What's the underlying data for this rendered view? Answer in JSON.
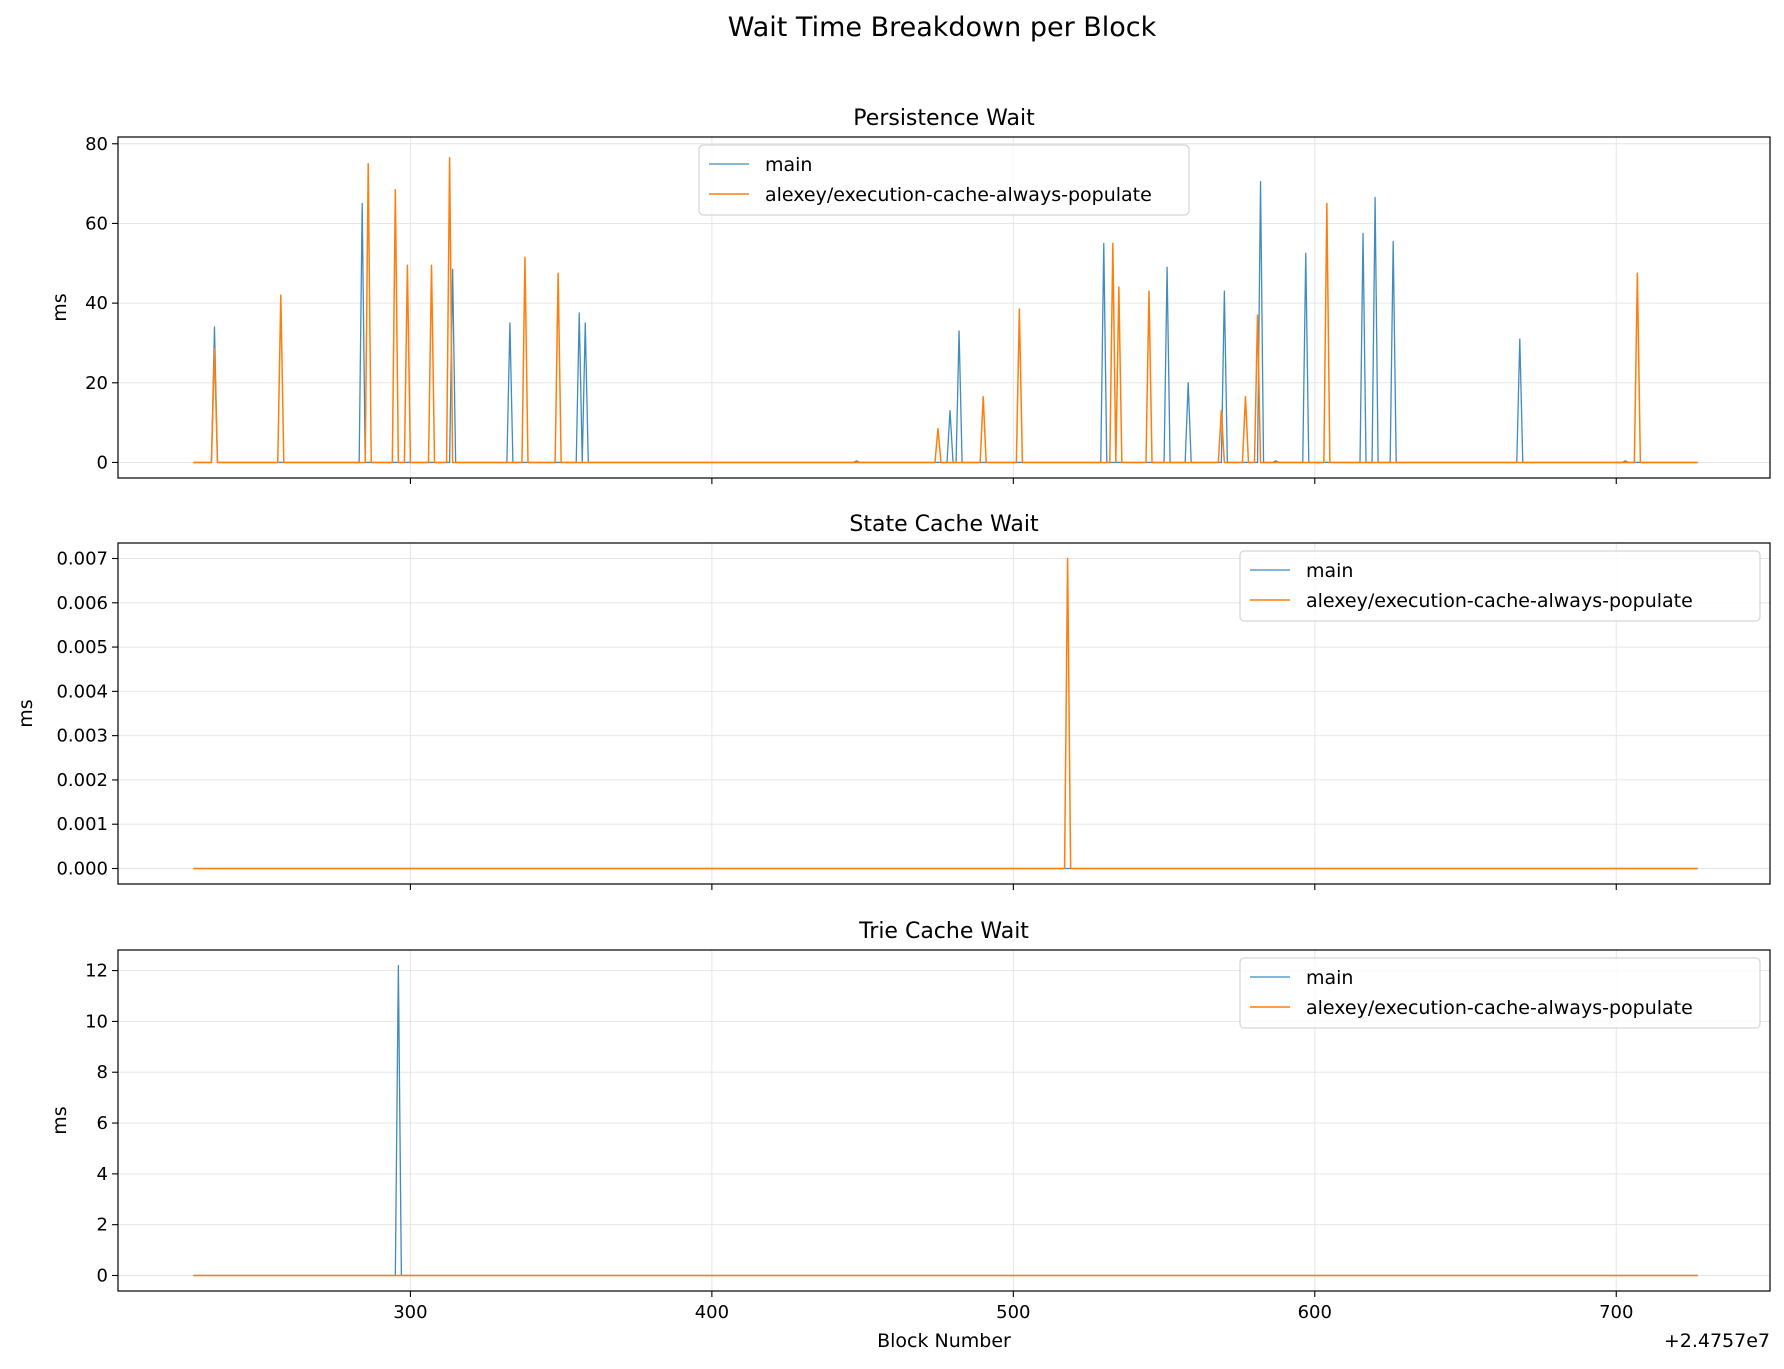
{
  "figure": {
    "title": "Wait Time Breakdown per Block"
  },
  "colors": {
    "main": "#1f77b4",
    "branch": "#ff7f0e",
    "grid": "#e6e6e6",
    "axis": "#000000"
  },
  "chart_data": [
    {
      "type": "line",
      "title": "Persistence Wait",
      "xlabel": "",
      "ylabel": "ms",
      "offset_text": "",
      "xlim": [
        24757203,
        24757751
      ],
      "ylim": [
        -3.9,
        81.7
      ],
      "xticks": [
        24757300,
        24757400,
        24757500,
        24757600,
        24757700
      ],
      "xtick_labels": [
        "",
        "",
        "",
        "",
        ""
      ],
      "yticks": [
        0,
        20,
        40,
        60,
        80
      ],
      "ytick_labels": [
        "0",
        "20",
        "40",
        "60",
        "80"
      ],
      "grid": true,
      "legend_position": "top-center",
      "x_range": [
        24757228,
        24757727
      ],
      "series": [
        {
          "name": "main",
          "color": "#1f77b4",
          "baseline": 0,
          "peaks": [
            [
              24757235,
              34
            ],
            [
              24757284,
              65
            ],
            [
              24757314,
              48.5
            ],
            [
              24757333,
              35
            ],
            [
              24757356,
              37.5
            ],
            [
              24757358,
              35
            ],
            [
              24757448,
              0.4
            ],
            [
              24757479,
              13
            ],
            [
              24757482,
              33
            ],
            [
              24757530,
              55
            ],
            [
              24757551,
              49
            ],
            [
              24757558,
              20
            ],
            [
              24757570,
              43
            ],
            [
              24757582,
              70.5
            ],
            [
              24757587,
              0.4
            ],
            [
              24757597,
              52.5
            ],
            [
              24757616,
              57.5
            ],
            [
              24757620,
              66.5
            ],
            [
              24757626,
              55.5
            ],
            [
              24757668,
              31
            ],
            [
              24757703,
              0.4
            ]
          ]
        },
        {
          "name": "alexey/execution-cache-always-populate",
          "color": "#ff7f0e",
          "baseline": 0,
          "peaks": [
            [
              24757235,
              28.5
            ],
            [
              24757257,
              42
            ],
            [
              24757286,
              75
            ],
            [
              24757295,
              68.5
            ],
            [
              24757299,
              49.5
            ],
            [
              24757307,
              49.5
            ],
            [
              24757313,
              76.5
            ],
            [
              24757338,
              51.5
            ],
            [
              24757349,
              47.5
            ],
            [
              24757475,
              8.5
            ],
            [
              24757490,
              16.5
            ],
            [
              24757502,
              38.5
            ],
            [
              24757533,
              55
            ],
            [
              24757535,
              44
            ],
            [
              24757545,
              43
            ],
            [
              24757569,
              13
            ],
            [
              24757577,
              16.5
            ],
            [
              24757581,
              37
            ],
            [
              24757604,
              65
            ],
            [
              24757707,
              47.5
            ]
          ]
        }
      ]
    },
    {
      "type": "line",
      "title": "State Cache Wait",
      "xlabel": "",
      "ylabel": "ms",
      "offset_text": "",
      "xlim": [
        24757203,
        24757751
      ],
      "ylim": [
        -0.00035,
        0.00735
      ],
      "xticks": [
        24757300,
        24757400,
        24757500,
        24757600,
        24757700
      ],
      "xtick_labels": [
        "",
        "",
        "",
        "",
        ""
      ],
      "yticks": [
        0,
        0.001,
        0.002,
        0.003,
        0.004,
        0.005,
        0.006,
        0.007
      ],
      "ytick_labels": [
        "0.000",
        "0.001",
        "0.002",
        "0.003",
        "0.004",
        "0.005",
        "0.006",
        "0.007"
      ],
      "grid": true,
      "legend_position": "top-right",
      "x_range": [
        24757228,
        24757727
      ],
      "series": [
        {
          "name": "main",
          "color": "#1f77b4",
          "baseline": 0,
          "peaks": []
        },
        {
          "name": "alexey/execution-cache-always-populate",
          "color": "#ff7f0e",
          "baseline": 0,
          "peaks": [
            [
              24757518,
              0.007
            ]
          ]
        }
      ]
    },
    {
      "type": "line",
      "title": "Trie Cache Wait",
      "xlabel": "Block Number",
      "ylabel": "ms",
      "offset_text": "+2.4757e7",
      "xlim": [
        24757203,
        24757751
      ],
      "ylim": [
        -0.61,
        12.81
      ],
      "xticks": [
        24757300,
        24757400,
        24757500,
        24757600,
        24757700
      ],
      "xtick_labels": [
        "300",
        "400",
        "500",
        "600",
        "700"
      ],
      "yticks": [
        0,
        2,
        4,
        6,
        8,
        10,
        12
      ],
      "ytick_labels": [
        "0",
        "2",
        "4",
        "6",
        "8",
        "10",
        "12"
      ],
      "grid": true,
      "legend_position": "top-right",
      "x_range": [
        24757228,
        24757727
      ],
      "series": [
        {
          "name": "main",
          "color": "#1f77b4",
          "baseline": 0,
          "peaks": [
            [
              24757296,
              12.2
            ]
          ]
        },
        {
          "name": "alexey/execution-cache-always-populate",
          "color": "#ff7f0e",
          "baseline": 0,
          "peaks": []
        }
      ]
    }
  ]
}
